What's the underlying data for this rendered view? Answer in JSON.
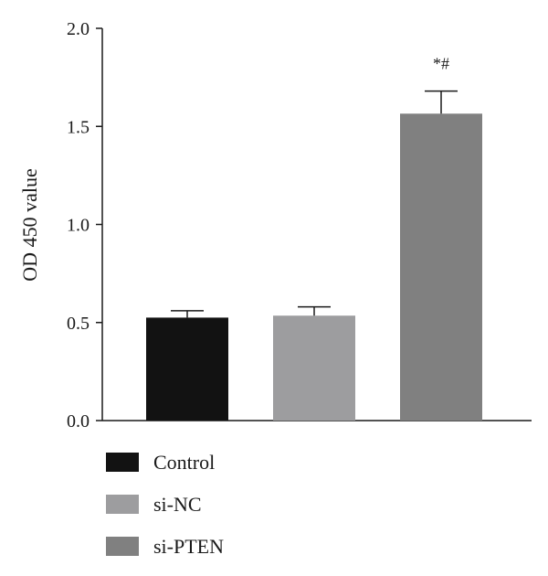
{
  "chart_data": {
    "type": "bar",
    "title": "",
    "xlabel": "",
    "ylabel": "OD 450 value",
    "ylim": [
      0,
      2.0
    ],
    "yticks": [
      "0.0",
      "0.5",
      "1.0",
      "1.5",
      "2.0"
    ],
    "yticks_values": [
      0,
      0.5,
      1.0,
      1.5,
      2.0
    ],
    "grid": false,
    "legend_position": "bottom-left",
    "categories": [
      "Control",
      "si-NC",
      "si-PTEN"
    ],
    "values": [
      0.525,
      0.535,
      1.565
    ],
    "errors": [
      0.035,
      0.045,
      0.115
    ],
    "colors": [
      "#121212",
      "#9d9d9f",
      "#808080"
    ],
    "annotations": [
      "",
      "",
      "*#"
    ]
  }
}
